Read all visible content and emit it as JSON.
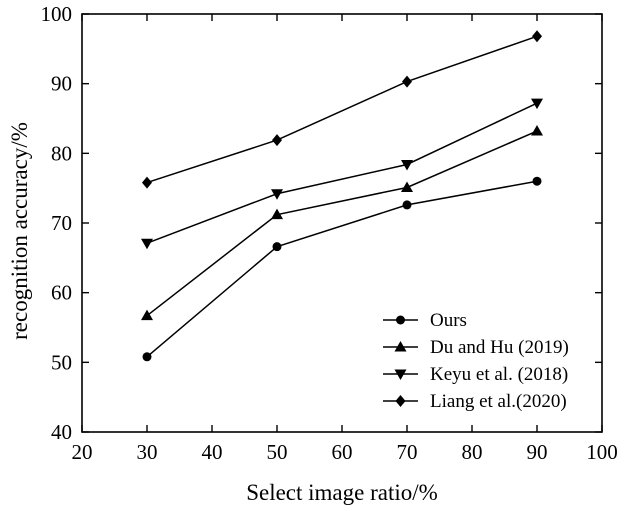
{
  "chart_data": {
    "type": "line",
    "xlabel": "Select image ratio/%",
    "ylabel": "recognition accuracy/%",
    "xlim": [
      20,
      100
    ],
    "ylim": [
      40,
      100
    ],
    "xticks": [
      20,
      30,
      40,
      50,
      60,
      70,
      80,
      90,
      100
    ],
    "yticks": [
      40,
      50,
      60,
      70,
      80,
      90,
      100
    ],
    "grid": false,
    "legend_position": "bottom-right",
    "series": [
      {
        "name": "Ours",
        "marker": "circle",
        "x": [
          30,
          50,
          70,
          90
        ],
        "values": [
          50.8,
          66.6,
          72.6,
          76.0
        ]
      },
      {
        "name": "Du and Hu (2019)",
        "marker": "triangle-up",
        "x": [
          30,
          50,
          70,
          90
        ],
        "values": [
          56.7,
          71.2,
          75.1,
          83.2
        ]
      },
      {
        "name": "Keyu et al. (2018)",
        "marker": "triangle-down",
        "x": [
          30,
          50,
          70,
          90
        ],
        "values": [
          67.1,
          74.2,
          78.4,
          87.2
        ]
      },
      {
        "name": "Liang et al.(2020)",
        "marker": "diamond",
        "x": [
          30,
          50,
          70,
          90
        ],
        "values": [
          75.8,
          81.9,
          90.3,
          96.8
        ]
      }
    ]
  }
}
